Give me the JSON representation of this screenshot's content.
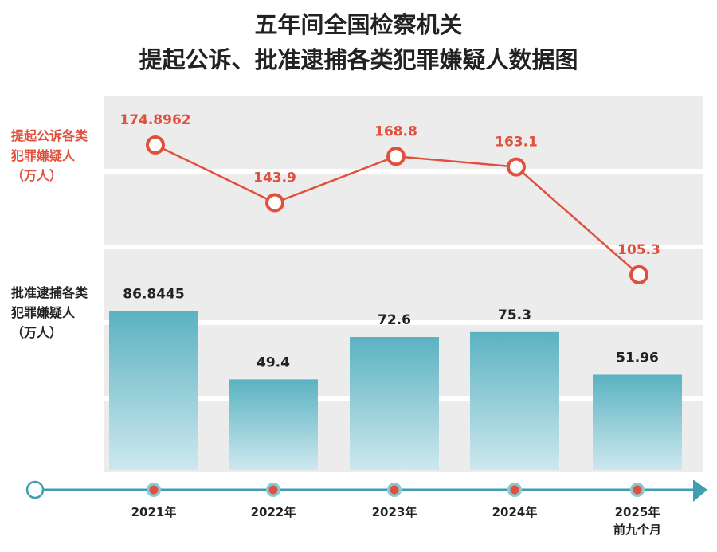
{
  "title_line1": "五年间全国检察机关",
  "title_line2": "提起公诉、批准逮捕各类犯罪嫌疑人数据图",
  "colors": {
    "line": "#e0513d",
    "bar_top": "#5bb2c2",
    "bar_bottom": "#cde8ee",
    "axis": "#3f9fb0",
    "bg": "#ececec"
  },
  "chart_data": {
    "type": "bar+line",
    "categories": [
      "2021年",
      "2022年",
      "2023年",
      "2024年",
      "2025年"
    ],
    "category_sublabels": [
      "",
      "",
      "",
      "",
      "前九个月"
    ],
    "series": [
      {
        "name": "提起公诉各类犯罪嫌疑人（万人）",
        "type": "line",
        "values": [
          174.8962,
          143.9,
          168.8,
          163.1,
          105.3
        ],
        "labels": [
          "174.8962",
          "143.9",
          "168.8",
          "163.1",
          "105.3"
        ]
      },
      {
        "name": "批准逮捕各类犯罪嫌疑人（万人）",
        "type": "bar",
        "values": [
          86.8445,
          49.4,
          72.6,
          75.3,
          51.96
        ],
        "labels": [
          "86.8445",
          "49.4",
          "72.6",
          "75.3",
          "51.96"
        ]
      }
    ],
    "legend_labels": [
      "提起公诉各类犯罪嫌疑人（万人）",
      "批准逮捕各类犯罪嫌疑人（万人）"
    ],
    "grid": true
  }
}
